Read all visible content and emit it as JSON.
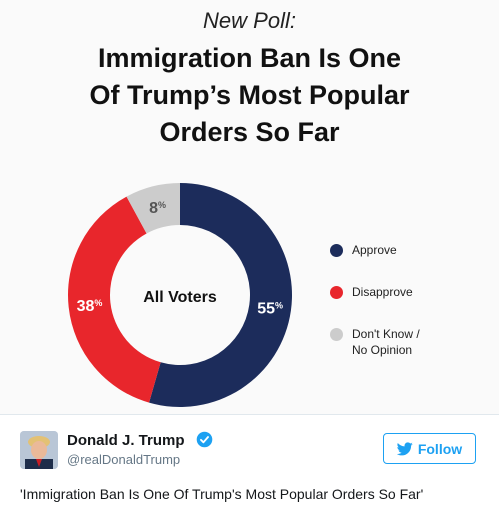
{
  "graphic": {
    "kicker": "New Poll:",
    "headline_lines": [
      "Immigration Ban Is One",
      "Of Trump’s Most Popular",
      "Orders So Far"
    ]
  },
  "chart_data": {
    "type": "pie",
    "variant": "donut",
    "center_label": "All Voters",
    "slices": [
      {
        "label": "Approve",
        "value": 55,
        "display": "55",
        "color": "#1c2c5b"
      },
      {
        "label": "Disapprove",
        "value": 38,
        "display": "38",
        "color": "#e8262c"
      },
      {
        "label": "Don't Know / No Opinion",
        "value": 8,
        "display": "8",
        "color": "#cccccc"
      }
    ],
    "legend": {
      "position": "right",
      "items": [
        {
          "lines": [
            "Approve"
          ],
          "color": "#1c2c5b"
        },
        {
          "lines": [
            "Disapprove"
          ],
          "color": "#e8262c"
        },
        {
          "lines": [
            "Don't Know /",
            "No Opinion"
          ],
          "color": "#cccccc"
        }
      ]
    }
  },
  "tweet": {
    "name": "Donald J. Trump",
    "handle": "@realDonaldTrump",
    "follow_label": "Follow",
    "text": "'Immigration Ban Is One Of Trump's Most Popular Orders So Far'",
    "colors": {
      "accent": "#1da1f2",
      "verified": "#1da1f2"
    },
    "icons": {
      "follow": "twitter-bird-icon",
      "verified": "verified-badge-icon",
      "avatar": "avatar"
    }
  }
}
